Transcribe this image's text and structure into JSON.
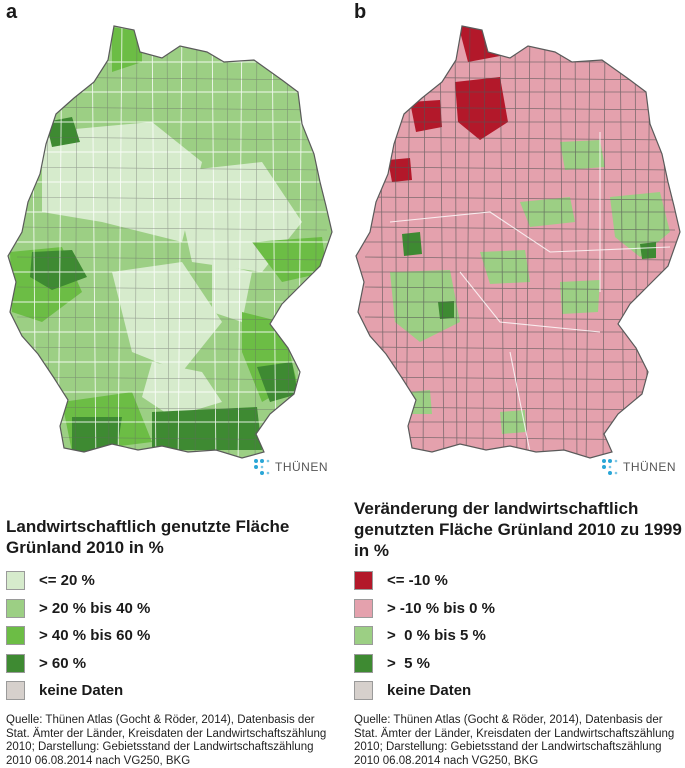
{
  "panels": [
    {
      "letter": "a",
      "title": "Landwirtschaftlich genutzte Fläche Grünland 2010 in %",
      "logo_text": "THÜNEN",
      "legend": [
        {
          "label": "<= 20 %",
          "color": "#d6ebcc"
        },
        {
          "label": "> 20 % bis 40 %",
          "color": "#9ccf84"
        },
        {
          "label": "> 40 % bis 60 %",
          "color": "#6cbd45"
        },
        {
          "label": "> 60 %",
          "color": "#3e8a32"
        },
        {
          "label": "keine Daten",
          "color": "#d6d0cc"
        }
      ],
      "source": "Quelle: Thünen Atlas (Gocht & Röder, 2014), Datenbasis der Stat. Ämter der Länder, Kreisdaten der Landwirtschaftszählung 2010; Darstellung: Gebietsstand der Landwirtschaftszählung 2010 06.08.2014 nach VG250, BKG"
    },
    {
      "letter": "b",
      "title": "Veränderung der landwirtschaftlich genutzten Fläche Grünland 2010 zu 1999 in %",
      "logo_text": "THÜNEN",
      "legend": [
        {
          "label": "<= -10 %",
          "color": "#b3182a"
        },
        {
          "label": "> -10 % bis 0 %",
          "color": "#e4a1ad"
        },
        {
          "label": ">  0 % bis 5 %",
          "color": "#9ccf84"
        },
        {
          "label": ">  5 %",
          "color": "#3e8a32"
        },
        {
          "label": "keine Daten",
          "color": "#d6d0cc"
        }
      ],
      "source": "Quelle: Thünen Atlas (Gocht & Röder, 2014),  Datenbasis der Stat. Ämter der Länder, Kreisdaten der Landwirtschaftszählung 2010; Darstellung: Gebietsstand der Landwirtschaftszählung 2010 06.08.2014 nach VG250, BKG"
    }
  ]
}
